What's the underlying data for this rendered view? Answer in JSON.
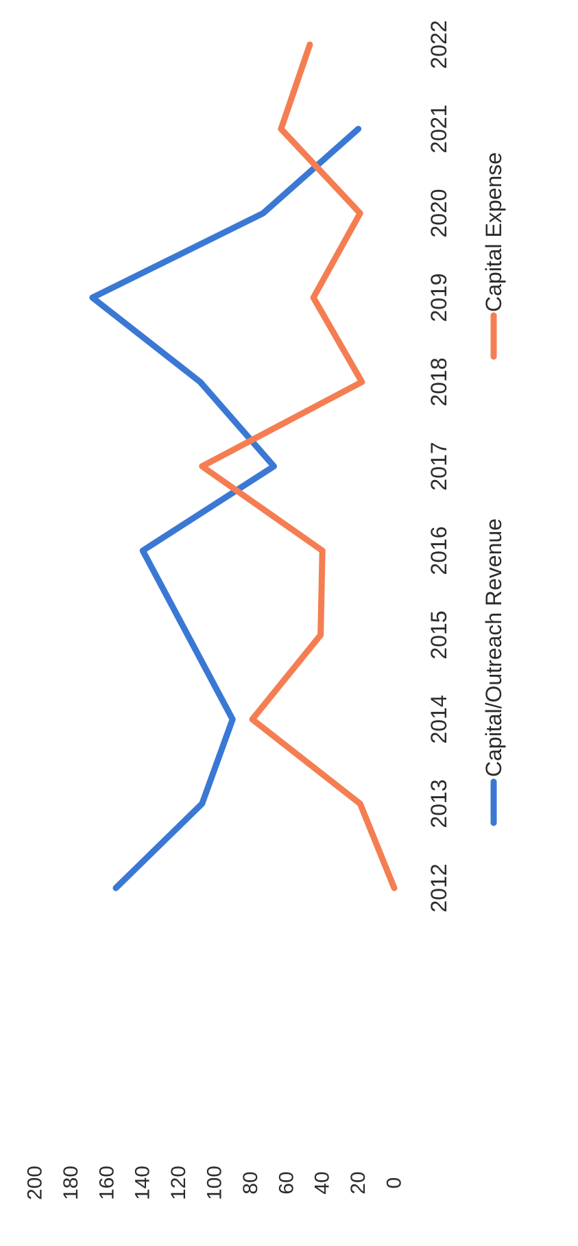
{
  "chart_data": {
    "type": "line",
    "orientation": "rotated-90-clockwise",
    "title": "",
    "xlabel": "",
    "ylabel": "",
    "categories": [
      "2012",
      "2013",
      "2014",
      "2015",
      "2016",
      "2017",
      "2018",
      "2019",
      "2020",
      "2021",
      "2022"
    ],
    "y_ticks": [
      "200",
      "180",
      "160",
      "140",
      "120",
      "100",
      "80",
      "60",
      "40",
      "20",
      "0"
    ],
    "ylim": [
      0,
      200
    ],
    "grid": false,
    "legend_position": "bottom",
    "series": [
      {
        "name": "Capital/Outreach Revenue",
        "color": "#3a78d4",
        "values": [
          155,
          107,
          90,
          115,
          140,
          67,
          108,
          168,
          73,
          20,
          null
        ]
      },
      {
        "name": "Capital Expense",
        "color": "#f47e52",
        "values": [
          0,
          19,
          79,
          41,
          40,
          107,
          18,
          45,
          19,
          63,
          47
        ]
      }
    ]
  }
}
